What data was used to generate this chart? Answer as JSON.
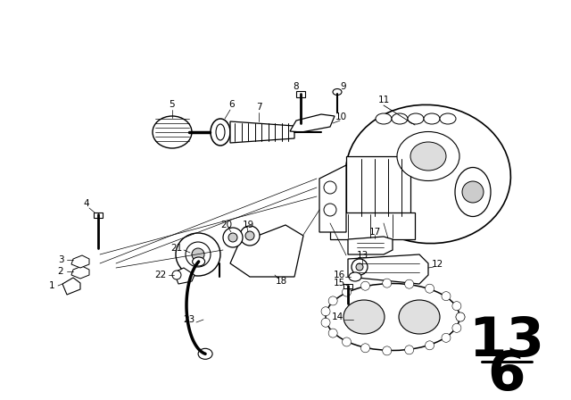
{
  "bg_color": "#ffffff",
  "line_color": "#000000",
  "fig_width": 6.4,
  "fig_height": 4.48,
  "dpi": 100,
  "page_number": "13",
  "page_sub": "6"
}
